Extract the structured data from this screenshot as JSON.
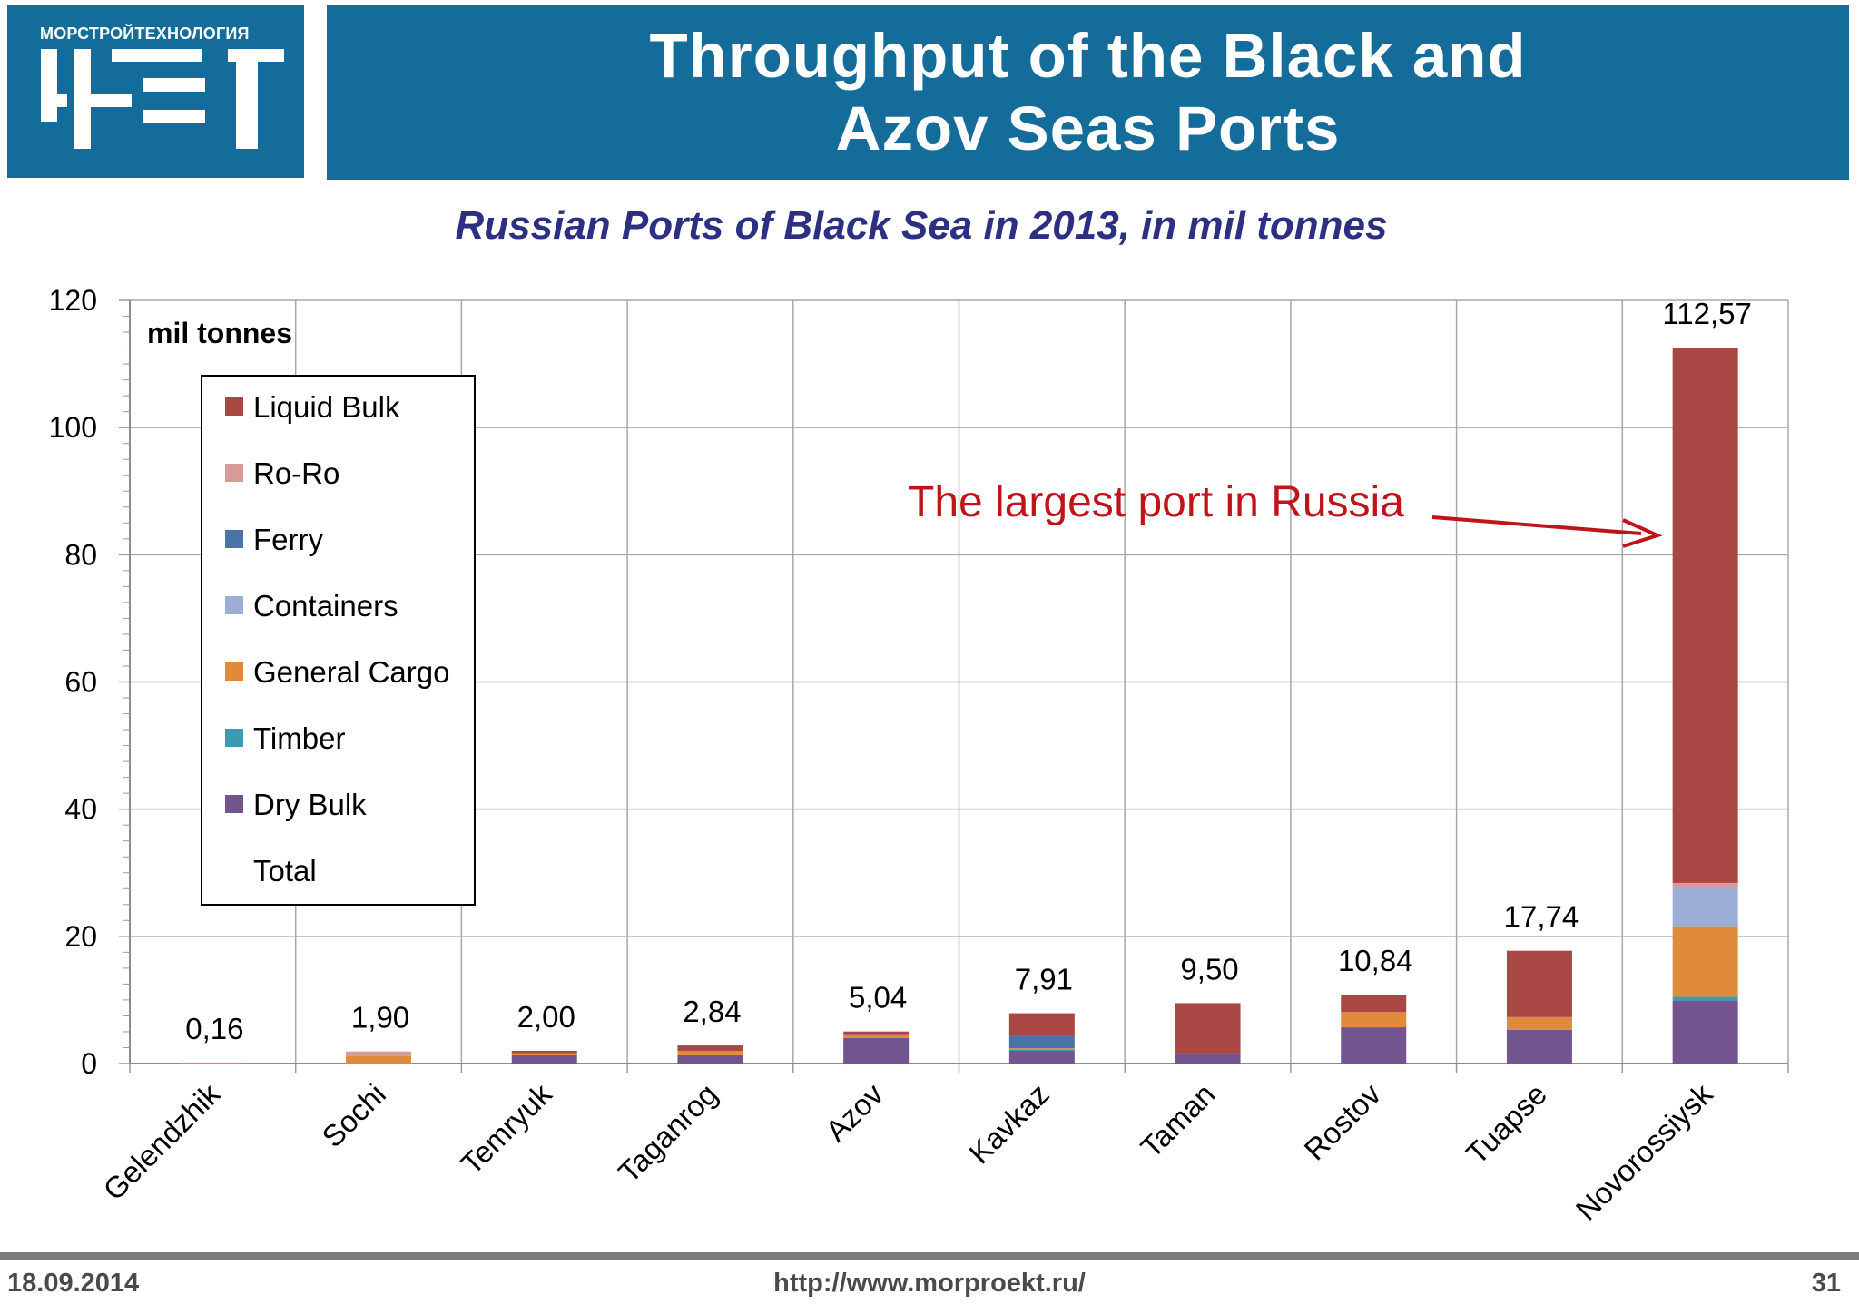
{
  "header": {
    "logo_caption": "МОРСТРОЙТЕХНОЛОГИЯ",
    "title_line1": "Throughput of the Black and",
    "title_line2": "Azov Seas Ports"
  },
  "footer": {
    "date": "18.09.2014",
    "url": "http://www.morproekt.ru/",
    "page": "31"
  },
  "chart_data": {
    "type": "bar",
    "stacked": true,
    "title": "Russian Ports of Black Sea in 2013, in mil tonnes",
    "ylabel": "mil tonnes",
    "xlabel": "",
    "ylim": [
      0,
      120
    ],
    "yticks": [
      0,
      20,
      40,
      60,
      80,
      100,
      120
    ],
    "grid": true,
    "legend_position": "top-left",
    "categories": [
      "Gelendzhik",
      "Sochi",
      "Temryuk",
      "Taganrog",
      "Azov",
      "Kavkaz",
      "Taman",
      "Rostov",
      "Tuapse",
      "Novorossiysk"
    ],
    "series": [
      {
        "name": "Dry Bulk",
        "color": "#72558f",
        "values": [
          0,
          0,
          1.3,
          1.3,
          4.0,
          2.0,
          1.7,
          5.7,
          5.3,
          9.9
        ]
      },
      {
        "name": "Timber",
        "color": "#3c9bb3",
        "values": [
          0,
          0,
          0,
          0,
          0,
          0.2,
          0,
          0,
          0,
          0.6
        ]
      },
      {
        "name": "General Cargo",
        "color": "#e08a3c",
        "values": [
          0.16,
          1.2,
          0.3,
          0.7,
          0.6,
          0.2,
          0,
          2.4,
          2.0,
          11.1
        ]
      },
      {
        "name": "Containers",
        "color": "#9aaed6",
        "values": [
          0,
          0,
          0,
          0,
          0,
          0,
          0,
          0,
          0,
          6.1
        ]
      },
      {
        "name": "Ferry",
        "color": "#4a74a8",
        "values": [
          0,
          0,
          0,
          0,
          0,
          1.9,
          0,
          0,
          0,
          0
        ]
      },
      {
        "name": "Ro-Ro",
        "color": "#d79a9b",
        "values": [
          0,
          0.7,
          0,
          0,
          0,
          0,
          0,
          0,
          0,
          0.7
        ]
      },
      {
        "name": "Liquid Bulk",
        "color": "#a94745",
        "values": [
          0,
          0,
          0.4,
          0.84,
          0.44,
          3.61,
          7.8,
          2.74,
          10.44,
          84.17
        ]
      }
    ],
    "legend_order": [
      "Liquid Bulk",
      "Ro-Ro",
      "Ferry",
      "Containers",
      "General Cargo",
      "Timber",
      "Dry Bulk",
      "Total"
    ],
    "totals": [
      0.16,
      1.9,
      2.0,
      2.84,
      5.04,
      7.91,
      9.5,
      10.84,
      17.74,
      112.57
    ],
    "total_labels": [
      "0,16",
      "1,90",
      "2,00",
      "2,84",
      "5,04",
      "7,91",
      "9,50",
      "10,84",
      "17,74",
      "112,57"
    ],
    "annotation": {
      "text": "The largest port in Russia",
      "target": "Novorossiysk",
      "color": "#c0141b"
    }
  }
}
